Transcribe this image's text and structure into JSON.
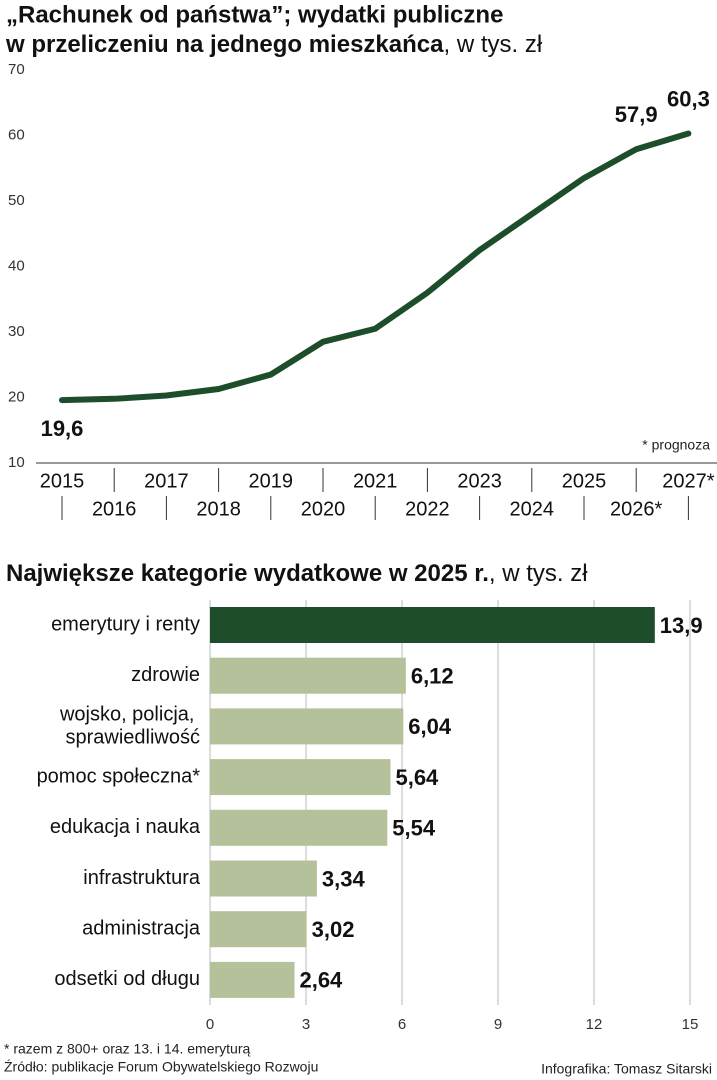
{
  "chart_data": [
    {
      "type": "line",
      "title": [
        "„Rachunek od państwa”; wydatki publiczne",
        "w przeliczeniu na jednego mieszkańca"
      ],
      "unit": ", w tys. zł",
      "categories": [
        "2015",
        "2016",
        "2017",
        "2018",
        "2019",
        "2020",
        "2021",
        "2022",
        "2023",
        "2024",
        "2025",
        "2026*",
        "2027*"
      ],
      "series": [
        {
          "color": "#1e4d2b",
          "values": [
            19.6,
            19.8,
            20.3,
            21.3,
            23.5,
            28.5,
            30.5,
            36,
            42.5,
            48,
            53.5,
            57.9,
            60.3
          ],
          "value_labels": [
            "19,6",
            null,
            null,
            null,
            null,
            null,
            null,
            null,
            null,
            null,
            null,
            "57,9",
            "60,3"
          ]
        }
      ],
      "ylim": [
        10,
        70
      ],
      "yticks": [
        10,
        20,
        30,
        40,
        50,
        60,
        70
      ],
      "annotation": "* prognoza"
    },
    {
      "type": "bar",
      "title": "Największe kategorie wydatkowe w 2025 r.",
      "unit": ", w tys. zł",
      "categories": [
        "emerytury i renty",
        "zdrowie",
        "wojsko, policja, sprawiedliwość",
        "pomoc społeczna*",
        "edukacja i nauka",
        "infrastruktura",
        "administracja",
        "odsetki od długu"
      ],
      "values": [
        13.9,
        6.12,
        6.04,
        5.64,
        5.54,
        3.34,
        3.02,
        2.64
      ],
      "value_labels": [
        "13,9",
        "6,12",
        "6,04",
        "5,64",
        "5,54",
        "3,34",
        "3,02",
        "2,64"
      ],
      "colors": [
        "#1e4d2b",
        "#b5c19a",
        "#b5c19a",
        "#b5c19a",
        "#b5c19a",
        "#b5c19a",
        "#b5c19a",
        "#b5c19a"
      ],
      "xlim": [
        0,
        15
      ],
      "xticks": [
        0,
        3,
        6,
        9,
        12,
        15
      ],
      "grid": true
    }
  ],
  "footer": {
    "note": "* razem z 800+ oraz 13. i 14. emeryturą",
    "source": "Źródło: publikacje Forum Obywatelskiego Rozwoju",
    "credit": "Infografika: Tomasz Sitarski"
  }
}
